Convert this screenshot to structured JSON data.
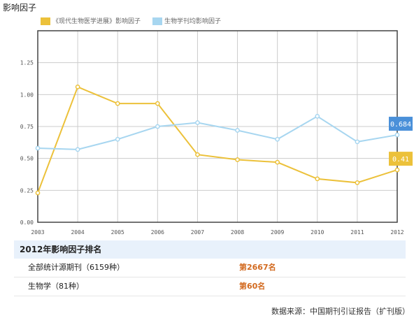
{
  "page_title": "影响因子",
  "colors": {
    "series_main": "#ecc13a",
    "series_bio": "#a7d6f0",
    "badge_bio": "#4a90d9",
    "badge_main": "#ecc13a",
    "rank_value": "#d2691e",
    "grid": "#cccccc",
    "frame": "#444444"
  },
  "chart_data": {
    "type": "line",
    "x": [
      "2003",
      "2004",
      "2005",
      "2006",
      "2007",
      "2008",
      "2009",
      "2010",
      "2011",
      "2012"
    ],
    "y_ticks": [
      "0.00",
      "0.25",
      "0.50",
      "0.75",
      "1.00",
      "1.25"
    ],
    "ylim": [
      0,
      1.5
    ],
    "grid": true,
    "legend_position": "top-left",
    "series": [
      {
        "name": "《现代生物医学进展》影响因子",
        "values": [
          0.23,
          1.06,
          0.93,
          0.93,
          0.53,
          0.49,
          0.47,
          0.34,
          0.31,
          0.41
        ],
        "end_label": "0.41"
      },
      {
        "name": "生物学刊均影响因子",
        "values": [
          0.58,
          0.57,
          0.65,
          0.75,
          0.78,
          0.72,
          0.65,
          0.83,
          0.63,
          0.684
        ],
        "end_label": "0.684"
      }
    ]
  },
  "ranking": {
    "title": "2012年影响因子排名",
    "rows": [
      {
        "label": "全部统计源期刊（6159种）",
        "value": "第2667名"
      },
      {
        "label": "生物学（81种）",
        "value": "第60名"
      }
    ]
  },
  "source": "数据来源：中国期刊引证报告（扩刊版）"
}
